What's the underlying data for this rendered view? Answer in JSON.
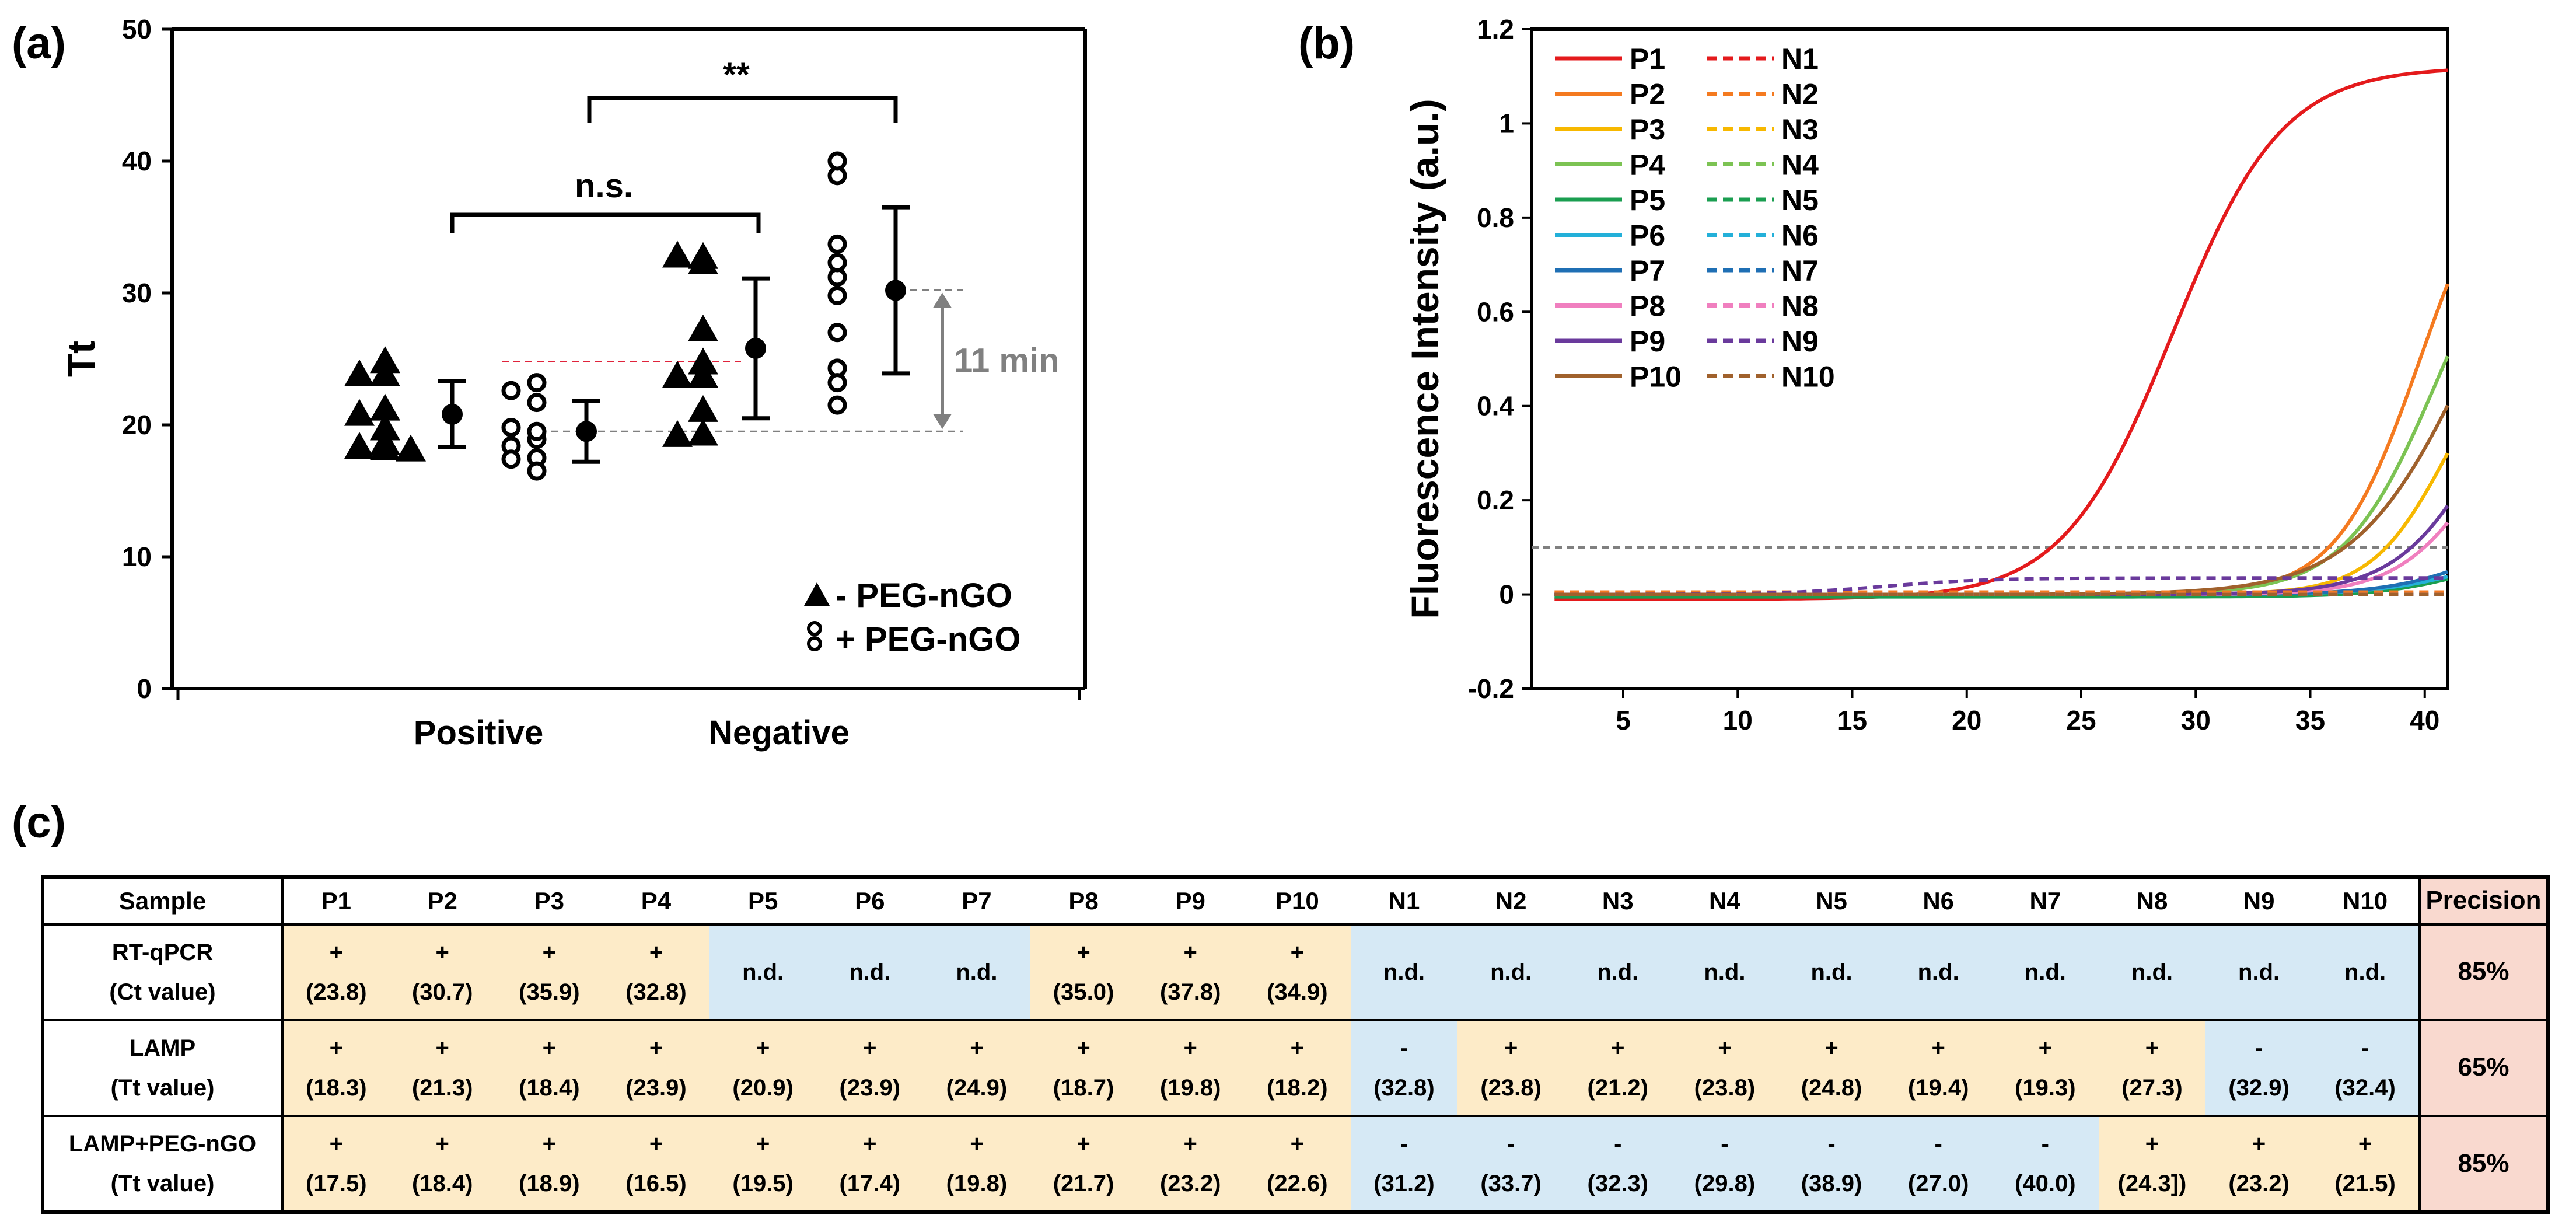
{
  "panel_labels": {
    "a": "(a)",
    "b": "(b)",
    "c": "(c)"
  },
  "chart_data": [
    {
      "type": "scatter",
      "panel": "(a)",
      "ylabel": "Tt",
      "ylim": [
        0,
        50
      ],
      "yticks": [
        0,
        10,
        20,
        30,
        40,
        50
      ],
      "categories": [
        "Positive",
        "Negative"
      ],
      "series": [
        {
          "name": "- PEG-nGO",
          "marker": "triangle",
          "groups": [
            {
              "category": "Positive",
              "values": [
                18.3,
                21.3,
                18.4,
                23.9,
                20.9,
                23.9,
                24.9,
                18.7,
                19.8,
                18.2
              ],
              "mean": 20.8,
              "sd": 2.5
            },
            {
              "category": "Negative",
              "values": [
                32.8,
                23.8,
                21.2,
                23.8,
                24.8,
                19.4,
                19.3,
                27.3,
                32.9,
                32.4
              ],
              "mean": 25.8,
              "sd": 5.3
            }
          ]
        },
        {
          "name": "+ PEG-nGO",
          "marker": "open-circle",
          "groups": [
            {
              "category": "Positive",
              "values": [
                17.5,
                18.4,
                18.9,
                16.5,
                19.5,
                17.4,
                19.8,
                21.7,
                23.2,
                22.6
              ],
              "mean": 19.5,
              "sd": 2.3
            },
            {
              "category": "Negative",
              "values": [
                31.2,
                33.7,
                32.3,
                29.8,
                38.9,
                27.0,
                40.0,
                24.3,
                23.2,
                21.5
              ],
              "mean": 30.2,
              "sd": 6.3
            }
          ]
        }
      ],
      "annotations": {
        "ns": "n.s.",
        "sig": "**",
        "gap": "11 min"
      },
      "reference_lines": {
        "red": 24.8,
        "grey_upper": 30.2,
        "grey_lower": 19.5
      },
      "legend": [
        "- PEG-nGO",
        "+ PEG-nGO"
      ],
      "legend_position": "bottom-right"
    },
    {
      "type": "line",
      "panel": "(b)",
      "ylabel": "Fluorescence Intensity (a.u.)",
      "xlim": [
        1,
        41
      ],
      "ylim": [
        -0.2,
        1.2
      ],
      "xticks": [
        5,
        10,
        15,
        20,
        25,
        30,
        35,
        40
      ],
      "yticks": [
        -0.2,
        0,
        0.2,
        0.4,
        0.6,
        0.8,
        1,
        1.2
      ],
      "ytick_labels": [
        "-0.2",
        "0",
        "0.2",
        "0.4",
        "0.6",
        "0.8",
        "1",
        "1.2"
      ],
      "threshold": 0.1,
      "legend_position": "top-left",
      "series": [
        {
          "name": "P1",
          "color": "#e41a1c",
          "style": "solid",
          "plateau": 1.13,
          "midpoint": 29.0,
          "rate": 0.42,
          "offset": -0.01
        },
        {
          "name": "P2",
          "color": "#f47a20",
          "style": "solid",
          "plateau": 1.0,
          "midpoint": 39.8,
          "rate": 0.55,
          "offset": 0.0
        },
        {
          "name": "P3",
          "color": "#f7b800",
          "style": "solid",
          "plateau": 0.6,
          "midpoint": 41.0,
          "rate": 0.6,
          "offset": 0.0
        },
        {
          "name": "P4",
          "color": "#7cc353",
          "style": "solid",
          "plateau": 0.9,
          "midpoint": 40.5,
          "rate": 0.5,
          "offset": 0.0
        },
        {
          "name": "P5",
          "color": "#1a9e50",
          "style": "solid",
          "plateau": 0.1,
          "midpoint": 42.0,
          "rate": 0.5,
          "offset": -0.005
        },
        {
          "name": "P6",
          "color": "#23b0d9",
          "style": "solid",
          "plateau": 0.1,
          "midpoint": 42.0,
          "rate": 0.5,
          "offset": 0.0
        },
        {
          "name": "P7",
          "color": "#1f6fb4",
          "style": "solid",
          "plateau": 0.15,
          "midpoint": 42.5,
          "rate": 0.5,
          "offset": 0.0
        },
        {
          "name": "P8",
          "color": "#f07fbf",
          "style": "solid",
          "plateau": 0.5,
          "midpoint": 42.5,
          "rate": 0.55,
          "offset": 0.0
        },
        {
          "name": "P9",
          "color": "#6a3a9c",
          "style": "solid",
          "plateau": 0.7,
          "midpoint": 43.0,
          "rate": 0.5,
          "offset": 0.0
        },
        {
          "name": "P10",
          "color": "#a0612c",
          "style": "solid",
          "plateau": 1.0,
          "midpoint": 42.0,
          "rate": 0.4,
          "offset": 0.0
        },
        {
          "name": "N1",
          "color": "#e41a1c",
          "style": "dashed",
          "plateau": 0.0,
          "midpoint": 40,
          "rate": 0.5,
          "offset": 0.0
        },
        {
          "name": "N2",
          "color": "#f47a20",
          "style": "dashed",
          "plateau": 0.0,
          "midpoint": 40,
          "rate": 0.5,
          "offset": 0.005
        },
        {
          "name": "N3",
          "color": "#f7b800",
          "style": "dashed",
          "plateau": 0.0,
          "midpoint": 40,
          "rate": 0.5,
          "offset": 0.0
        },
        {
          "name": "N4",
          "color": "#7cc353",
          "style": "dashed",
          "plateau": 0.0,
          "midpoint": 40,
          "rate": 0.5,
          "offset": 0.0
        },
        {
          "name": "N5",
          "color": "#1a9e50",
          "style": "dashed",
          "plateau": 0.0,
          "midpoint": 40,
          "rate": 0.5,
          "offset": 0.0
        },
        {
          "name": "N6",
          "color": "#23b0d9",
          "style": "dashed",
          "plateau": 0.0,
          "midpoint": 40,
          "rate": 0.5,
          "offset": 0.0
        },
        {
          "name": "N7",
          "color": "#1f6fb4",
          "style": "dashed",
          "plateau": 0.0,
          "midpoint": 40,
          "rate": 0.5,
          "offset": 0.0
        },
        {
          "name": "N8",
          "color": "#f07fbf",
          "style": "dashed",
          "plateau": 0.0,
          "midpoint": 40,
          "rate": 0.5,
          "offset": 0.0
        },
        {
          "name": "N9",
          "color": "#6a3a9c",
          "style": "dashed",
          "plateau": 0.035,
          "midpoint": 16.5,
          "rate": 0.45,
          "offset": 0.0
        },
        {
          "name": "N10",
          "color": "#a0612c",
          "style": "dashed",
          "plateau": 0.0,
          "midpoint": 40,
          "rate": 0.5,
          "offset": 0.0
        }
      ]
    },
    {
      "type": "table",
      "panel": "(c)",
      "header": [
        "Sample",
        "P1",
        "P2",
        "P3",
        "P4",
        "P5",
        "P6",
        "P7",
        "P8",
        "P9",
        "P10",
        "N1",
        "N2",
        "N3",
        "N4",
        "N5",
        "N6",
        "N7",
        "N8",
        "N9",
        "N10",
        "Precision"
      ],
      "rows": [
        {
          "method": "RT-qPCR",
          "metric": "(Ct value)",
          "precision": "85%",
          "cells": [
            {
              "sign": "+",
              "value": "(23.8)",
              "tone": "pos"
            },
            {
              "sign": "+",
              "value": "(30.7)",
              "tone": "pos"
            },
            {
              "sign": "+",
              "value": "(35.9)",
              "tone": "pos"
            },
            {
              "sign": "+",
              "value": "(32.8)",
              "tone": "pos"
            },
            {
              "sign": "n.d.",
              "value": "",
              "tone": "neg"
            },
            {
              "sign": "n.d.",
              "value": "",
              "tone": "neg"
            },
            {
              "sign": "n.d.",
              "value": "",
              "tone": "neg"
            },
            {
              "sign": "+",
              "value": "(35.0)",
              "tone": "pos"
            },
            {
              "sign": "+",
              "value": "(37.8)",
              "tone": "pos"
            },
            {
              "sign": "+",
              "value": "(34.9)",
              "tone": "pos"
            },
            {
              "sign": "n.d.",
              "value": "",
              "tone": "neg"
            },
            {
              "sign": "n.d.",
              "value": "",
              "tone": "neg"
            },
            {
              "sign": "n.d.",
              "value": "",
              "tone": "neg"
            },
            {
              "sign": "n.d.",
              "value": "",
              "tone": "neg"
            },
            {
              "sign": "n.d.",
              "value": "",
              "tone": "neg"
            },
            {
              "sign": "n.d.",
              "value": "",
              "tone": "neg"
            },
            {
              "sign": "n.d.",
              "value": "",
              "tone": "neg"
            },
            {
              "sign": "n.d.",
              "value": "",
              "tone": "neg"
            },
            {
              "sign": "n.d.",
              "value": "",
              "tone": "neg"
            },
            {
              "sign": "n.d.",
              "value": "",
              "tone": "neg"
            }
          ]
        },
        {
          "method": "LAMP",
          "metric": "(Tt value)",
          "precision": "65%",
          "cells": [
            {
              "sign": "+",
              "value": "(18.3)",
              "tone": "pos"
            },
            {
              "sign": "+",
              "value": "(21.3)",
              "tone": "pos"
            },
            {
              "sign": "+",
              "value": "(18.4)",
              "tone": "pos"
            },
            {
              "sign": "+",
              "value": "(23.9)",
              "tone": "pos"
            },
            {
              "sign": "+",
              "value": "(20.9)",
              "tone": "pos"
            },
            {
              "sign": "+",
              "value": "(23.9)",
              "tone": "pos"
            },
            {
              "sign": "+",
              "value": "(24.9)",
              "tone": "pos"
            },
            {
              "sign": "+",
              "value": "(18.7)",
              "tone": "pos"
            },
            {
              "sign": "+",
              "value": "(19.8)",
              "tone": "pos"
            },
            {
              "sign": "+",
              "value": "(18.2)",
              "tone": "pos"
            },
            {
              "sign": "-",
              "value": "(32.8)",
              "tone": "neg"
            },
            {
              "sign": "+",
              "value": "(23.8)",
              "tone": "pos"
            },
            {
              "sign": "+",
              "value": "(21.2)",
              "tone": "pos"
            },
            {
              "sign": "+",
              "value": "(23.8)",
              "tone": "pos"
            },
            {
              "sign": "+",
              "value": "(24.8)",
              "tone": "pos"
            },
            {
              "sign": "+",
              "value": "(19.4)",
              "tone": "pos"
            },
            {
              "sign": "+",
              "value": "(19.3)",
              "tone": "pos"
            },
            {
              "sign": "+",
              "value": "(27.3)",
              "tone": "pos"
            },
            {
              "sign": "-",
              "value": "(32.9)",
              "tone": "neg"
            },
            {
              "sign": "-",
              "value": "(32.4)",
              "tone": "neg"
            }
          ]
        },
        {
          "method": "LAMP+PEG-nGO",
          "metric": "(Tt value)",
          "precision": "85%",
          "cells": [
            {
              "sign": "+",
              "value": "(17.5)",
              "tone": "pos"
            },
            {
              "sign": "+",
              "value": "(18.4)",
              "tone": "pos"
            },
            {
              "sign": "+",
              "value": "(18.9)",
              "tone": "pos"
            },
            {
              "sign": "+",
              "value": "(16.5)",
              "tone": "pos"
            },
            {
              "sign": "+",
              "value": "(19.5)",
              "tone": "pos"
            },
            {
              "sign": "+",
              "value": "(17.4)",
              "tone": "pos"
            },
            {
              "sign": "+",
              "value": "(19.8)",
              "tone": "pos"
            },
            {
              "sign": "+",
              "value": "(21.7)",
              "tone": "pos"
            },
            {
              "sign": "+",
              "value": "(23.2)",
              "tone": "pos"
            },
            {
              "sign": "+",
              "value": "(22.6)",
              "tone": "pos"
            },
            {
              "sign": "-",
              "value": "(31.2)",
              "tone": "neg"
            },
            {
              "sign": "-",
              "value": "(33.7)",
              "tone": "neg"
            },
            {
              "sign": "-",
              "value": "(32.3)",
              "tone": "neg"
            },
            {
              "sign": "-",
              "value": "(29.8)",
              "tone": "neg"
            },
            {
              "sign": "-",
              "value": "(38.9)",
              "tone": "neg"
            },
            {
              "sign": "-",
              "value": "(27.0)",
              "tone": "neg"
            },
            {
              "sign": "-",
              "value": "(40.0)",
              "tone": "neg"
            },
            {
              "sign": "+",
              "value": "(24.3])",
              "tone": "pos"
            },
            {
              "sign": "+",
              "value": "(23.2)",
              "tone": "pos"
            },
            {
              "sign": "+",
              "value": "(21.5)",
              "tone": "pos"
            }
          ]
        }
      ]
    }
  ]
}
